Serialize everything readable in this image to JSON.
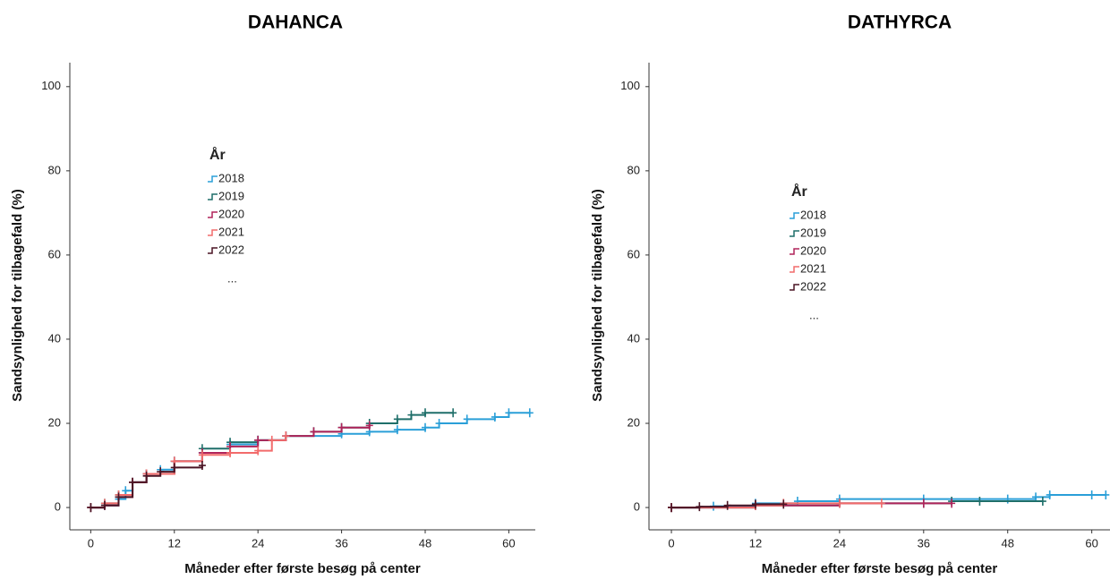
{
  "chart_data": [
    {
      "type": "line",
      "title": "DAHANCA",
      "x_label": "Måneder efter første besøg på center",
      "y_label": "Sandsynlighed for tilbagefald (%)",
      "legend_title": "År",
      "legend_more": "...",
      "xlim": [
        -3,
        63.8
      ],
      "ylim": [
        -5.3,
        105.7
      ],
      "xticks": [
        0,
        12,
        24,
        36,
        48,
        60
      ],
      "yticks": [
        0,
        20,
        40,
        60,
        80,
        100
      ],
      "series": [
        {
          "name": "2018",
          "color": "#2a9fd8",
          "x": [
            0,
            2,
            4,
            5,
            6,
            8,
            10,
            12,
            16,
            20,
            24,
            28,
            36,
            40,
            44,
            48,
            50,
            54,
            58,
            60,
            63
          ],
          "values": [
            0,
            0.5,
            2,
            4,
            6,
            8,
            9,
            11,
            13,
            15,
            16,
            17,
            17.5,
            18,
            18.5,
            19,
            20,
            21,
            21.5,
            22.5,
            22.5
          ]
        },
        {
          "name": "2019",
          "color": "#1f6f6a",
          "x": [
            0,
            2,
            4,
            6,
            8,
            12,
            16,
            20,
            24,
            28,
            32,
            36,
            40,
            44,
            46,
            48,
            52
          ],
          "values": [
            0,
            1,
            3,
            6,
            8,
            11,
            14,
            15.5,
            16,
            17,
            18,
            19,
            20,
            21,
            22,
            22.5,
            22.5
          ]
        },
        {
          "name": "2020",
          "color": "#b0245a",
          "x": [
            0,
            2,
            4,
            6,
            8,
            12,
            16,
            20,
            24,
            28,
            32,
            36,
            40
          ],
          "values": [
            0,
            0.5,
            2.5,
            6,
            8,
            11,
            13,
            14.5,
            16,
            17,
            18,
            19,
            19.5
          ]
        },
        {
          "name": "2021",
          "color": "#f26b6b",
          "x": [
            0,
            2,
            4,
            6,
            8,
            12,
            16,
            20,
            24,
            26,
            28
          ],
          "values": [
            0,
            1,
            3,
            6,
            8,
            11,
            12.5,
            13,
            13.5,
            16,
            17
          ]
        },
        {
          "name": "2022",
          "color": "#4a1424",
          "x": [
            0,
            2,
            4,
            6,
            8,
            10,
            12,
            16
          ],
          "values": [
            0,
            0.5,
            2.5,
            6,
            7.5,
            8.5,
            9.5,
            10
          ]
        }
      ]
    },
    {
      "type": "line",
      "title": "DATHYRCA",
      "x_label": "Måneder efter første besøg på center",
      "y_label": "Sandsynlighed for tilbagefald (%)",
      "legend_title": "År",
      "legend_more": "...",
      "xlim": [
        -3.2,
        62.6
      ],
      "ylim": [
        -5.3,
        105.7
      ],
      "xticks": [
        0,
        12,
        24,
        36,
        48,
        60
      ],
      "yticks": [
        0,
        20,
        40,
        60,
        80,
        100
      ],
      "series": [
        {
          "name": "2018",
          "color": "#2a9fd8",
          "x": [
            0,
            6,
            12,
            18,
            24,
            36,
            48,
            52,
            54,
            60,
            62
          ],
          "values": [
            0,
            0.3,
            1,
            1.5,
            2,
            2,
            2,
            2.5,
            3,
            3,
            3
          ]
        },
        {
          "name": "2019",
          "color": "#1f6f6a",
          "x": [
            0,
            12,
            24,
            36,
            40,
            44,
            53
          ],
          "values": [
            0,
            0.5,
            1,
            1,
            1.5,
            1.5,
            1.5
          ]
        },
        {
          "name": "2020",
          "color": "#b0245a",
          "x": [
            0,
            12,
            24,
            36,
            40
          ],
          "values": [
            0,
            0.5,
            1,
            1,
            1
          ]
        },
        {
          "name": "2021",
          "color": "#f26b6b",
          "x": [
            0,
            12,
            16,
            24,
            30
          ],
          "values": [
            0,
            0.5,
            1,
            1,
            1
          ]
        },
        {
          "name": "2022",
          "color": "#4a1424",
          "x": [
            0,
            4,
            8,
            12,
            16
          ],
          "values": [
            0,
            0.2,
            0.5,
            0.8,
            0.8
          ]
        }
      ]
    }
  ]
}
